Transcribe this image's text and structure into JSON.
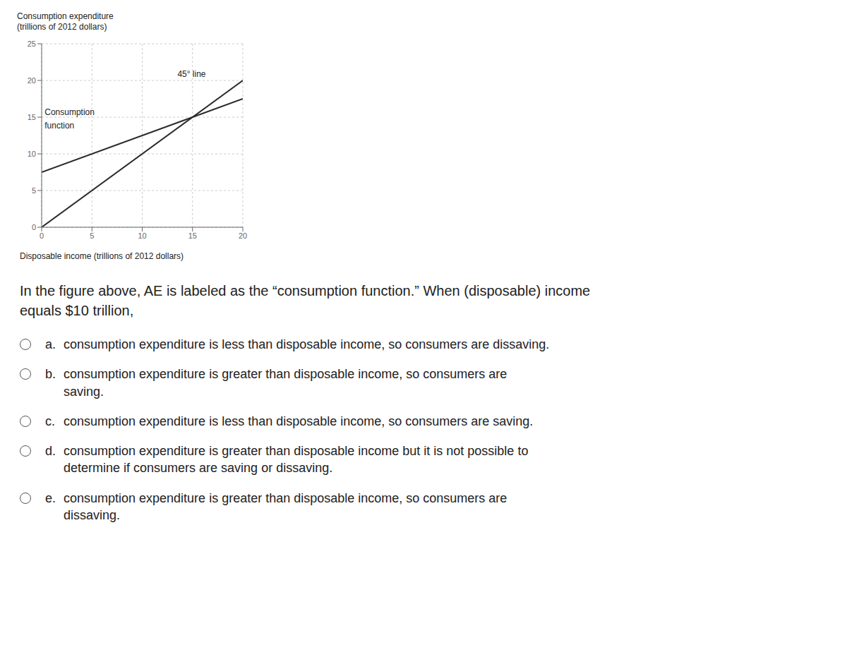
{
  "chart_data": {
    "type": "line",
    "ylabel": "Consumption expenditure\n(trillions of 2012 dollars)",
    "xlabel": "Disposable income (trillions of 2012 dollars)",
    "x": [
      0,
      20
    ],
    "series": [
      {
        "color": "#2a2a2a",
        "values": [
          0,
          20
        ]
      },
      {
        "color": "#2a2a2a",
        "values": [
          7.5,
          17.5
        ]
      }
    ],
    "annotations": [
      {
        "text": "45° line",
        "x": 13.5,
        "y": 20.5
      },
      {
        "text": "Consumption",
        "x": 0.3,
        "y": 15.3
      },
      {
        "text": "function",
        "x": 0.3,
        "y": 13.5
      }
    ],
    "xlim": [
      0,
      20
    ],
    "ylim": [
      0,
      25
    ],
    "xticks": [
      0,
      5,
      10,
      15,
      20
    ],
    "yticks": [
      0,
      5,
      10,
      15,
      20,
      25
    ],
    "grid": true
  },
  "question": "In the figure above, AE is labeled as the “consumption function.” When (disposable) income\nequals $10 trillion,",
  "options": [
    {
      "label": "a.",
      "text": "consumption expenditure is less than disposable income, so consumers are dissaving."
    },
    {
      "label": "b.",
      "text": "consumption expenditure is greater than disposable income, so consumers are\nsaving."
    },
    {
      "label": "c.",
      "text": "consumption expenditure is less than disposable income, so consumers are saving."
    },
    {
      "label": "d.",
      "text": "consumption expenditure is greater than disposable income but it is not possible to\ndetermine if consumers are saving or dissaving."
    },
    {
      "label": "e.",
      "text": "consumption expenditure is greater than disposable income, so consumers are\ndissaving."
    }
  ]
}
